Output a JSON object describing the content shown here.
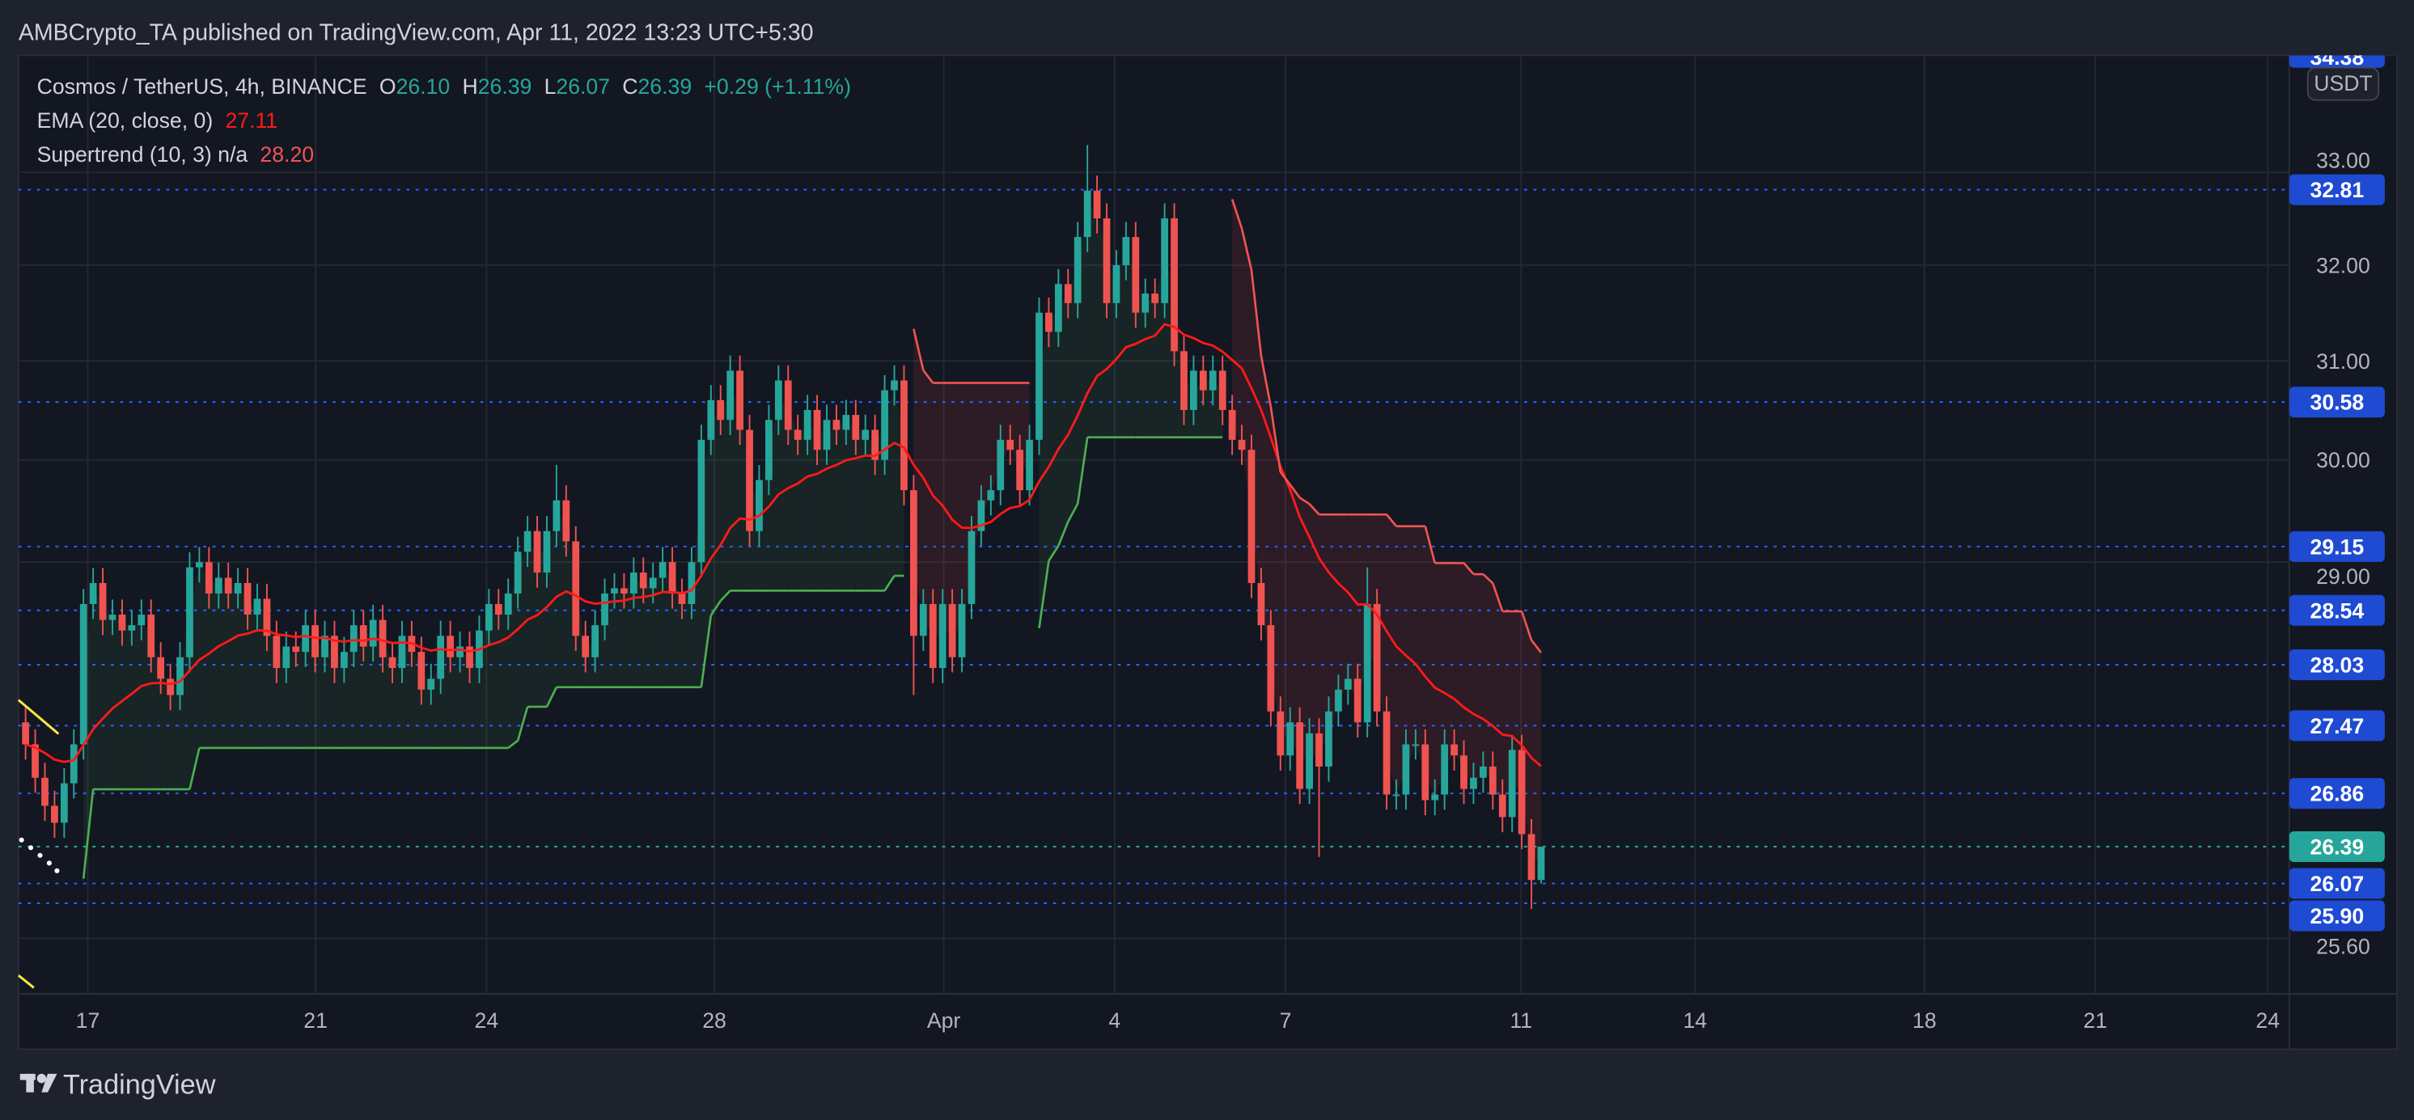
{
  "header": {
    "published": "AMBCrypto_TA published on TradingView.com, Apr 11, 2022 13:23 UTC+5:30"
  },
  "legend": {
    "symbol": "Cosmos / TetherUS, 4h, BINANCE",
    "o_label": "O",
    "o": "26.10",
    "h_label": "H",
    "h": "26.39",
    "l_label": "L",
    "l": "26.07",
    "c_label": "C",
    "c": "26.39",
    "change": "+0.29 (+1.11%)",
    "ema_label": "EMA (20, close, 0)",
    "ema_value": "27.11",
    "st_label": "Supertrend (10, 3)  n/a",
    "st_value": "28.20"
  },
  "price_axis": {
    "currency": "USDT",
    "ticks": [
      "33.00",
      "32.00",
      "31.00",
      "30.00",
      "29.00",
      "25.60"
    ],
    "tick_values": [
      33,
      32,
      31,
      30,
      29,
      25.6
    ],
    "top_clipped_label": "34.38"
  },
  "levels": [
    {
      "label": "32.81",
      "value": 32.81,
      "kind": "support"
    },
    {
      "label": "30.58",
      "value": 30.58,
      "kind": "support"
    },
    {
      "label": "29.15",
      "value": 29.15,
      "kind": "support"
    },
    {
      "label": "28.54",
      "value": 28.54,
      "kind": "support"
    },
    {
      "label": "28.03",
      "value": 28.03,
      "kind": "support"
    },
    {
      "label": "27.47",
      "value": 27.47,
      "kind": "support"
    },
    {
      "label": "26.86",
      "value": 26.86,
      "kind": "support"
    },
    {
      "label": "26.39",
      "value": 26.39,
      "kind": "last"
    },
    {
      "label": "26.07",
      "value": 26.07,
      "kind": "support"
    },
    {
      "label": "25.90",
      "value": 25.9,
      "kind": "support"
    }
  ],
  "time_axis": {
    "labels": [
      "17",
      "21",
      "24",
      "28",
      "Apr",
      "4",
      "7",
      "11",
      "14",
      "18",
      "21",
      "24"
    ]
  },
  "footer": {
    "brand": "TradingView"
  },
  "colors": {
    "up": "#26a69a",
    "down": "#ef5350",
    "ema": "#ff1a1a",
    "st_up": "#4caf50",
    "st_down": "#f05454",
    "level": "#2962ff",
    "last": "#26a69a"
  },
  "chart_data": {
    "type": "candlestick",
    "title": "Cosmos / TetherUS, 4h, BINANCE",
    "ylabel": "USDT",
    "yscale": "log",
    "ylim": [
      25.3,
      34.4
    ],
    "interval": "4h",
    "first_open": 27.5,
    "close": [
      27.3,
      27.0,
      26.75,
      26.6,
      26.95,
      27.3,
      28.6,
      28.8,
      28.45,
      28.5,
      28.35,
      28.4,
      28.5,
      28.1,
      27.9,
      27.75,
      28.1,
      28.95,
      29.0,
      28.7,
      28.85,
      28.7,
      28.8,
      28.5,
      28.65,
      28.3,
      28.0,
      28.2,
      28.15,
      28.4,
      28.1,
      28.3,
      28.0,
      28.15,
      28.4,
      28.2,
      28.45,
      28.1,
      28.0,
      28.3,
      28.15,
      27.8,
      27.9,
      28.3,
      28.1,
      28.2,
      28.0,
      28.35,
      28.6,
      28.5,
      28.7,
      29.1,
      29.3,
      28.9,
      29.3,
      29.6,
      29.2,
      28.3,
      28.1,
      28.4,
      28.7,
      28.75,
      28.7,
      28.9,
      28.75,
      28.85,
      29.0,
      28.7,
      28.6,
      29.0,
      30.2,
      30.6,
      30.4,
      30.9,
      30.3,
      29.3,
      29.8,
      30.4,
      30.8,
      30.3,
      30.2,
      30.5,
      30.1,
      30.4,
      30.3,
      30.45,
      30.2,
      30.3,
      30.0,
      30.7,
      30.8,
      29.7,
      28.3,
      28.6,
      28.0,
      28.6,
      28.1,
      28.6,
      29.3,
      29.6,
      29.7,
      30.2,
      30.1,
      29.7,
      30.2,
      31.5,
      31.3,
      31.8,
      31.6,
      32.3,
      32.8,
      32.5,
      31.6,
      32.0,
      32.3,
      31.5,
      31.7,
      31.6,
      32.5,
      31.1,
      30.5,
      30.9,
      30.7,
      30.9,
      30.5,
      30.2,
      30.1,
      28.8,
      28.4,
      27.6,
      27.2,
      27.5,
      26.9,
      27.4,
      27.1,
      27.6,
      27.8,
      27.9,
      27.5,
      28.6,
      27.6,
      26.85,
      26.85,
      27.3,
      27.3,
      26.8,
      26.85,
      27.3,
      27.2,
      26.9,
      27.0,
      27.1,
      26.85,
      26.65,
      27.25,
      26.5,
      26.1,
      26.39
    ],
    "wick_pct": 0.005,
    "wick_overrides": [
      {
        "index": 110,
        "high": 33.3
      },
      {
        "index": 55,
        "high": 29.95
      },
      {
        "index": 92,
        "low": 27.75
      },
      {
        "index": 134,
        "low": 26.3
      },
      {
        "index": 139,
        "high": 28.95
      },
      {
        "index": 156,
        "low": 25.85
      },
      {
        "index": 157,
        "open": 26.1,
        "high": 26.39,
        "low": 26.07
      }
    ],
    "indicators": [
      {
        "name": "EMA",
        "period": 20,
        "source": "close",
        "last": 27.11
      },
      {
        "name": "Supertrend",
        "atr_period": 10,
        "factor": 3,
        "last": 28.2
      }
    ]
  }
}
